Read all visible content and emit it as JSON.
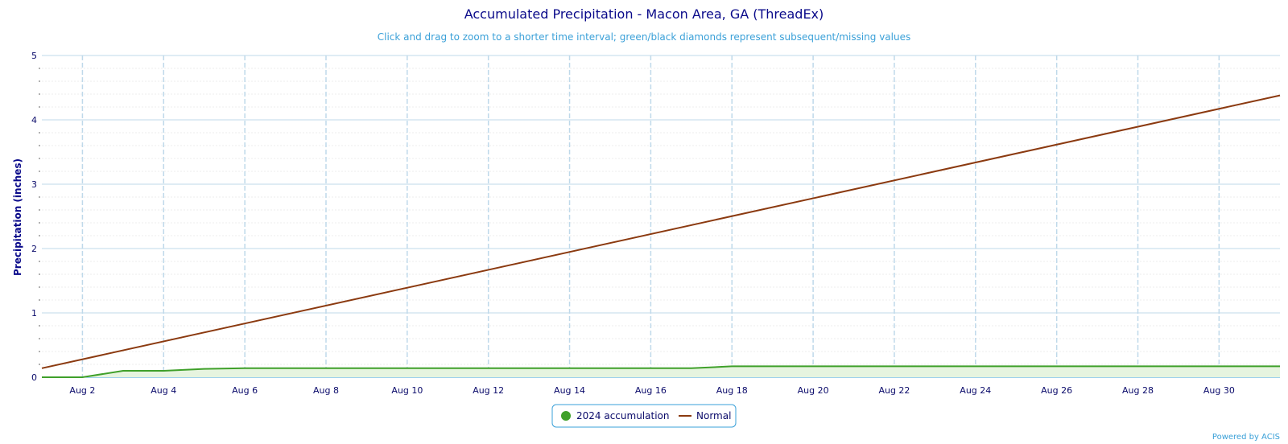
{
  "chart_data": {
    "type": "line",
    "title": "Accumulated Precipitation - Macon Area, GA (ThreadEx)",
    "subtitle": "Click and drag to zoom to a shorter time interval; green/black diamonds represent subsequent/missing values",
    "ylabel": "Precipitation (inches)",
    "xlabel": "",
    "ylim": [
      0,
      5
    ],
    "yticks": [
      0,
      1,
      2,
      3,
      4,
      5
    ],
    "xlim": [
      1,
      31.5
    ],
    "xticks": [
      {
        "day": 2,
        "label": "Aug 2"
      },
      {
        "day": 4,
        "label": "Aug 4"
      },
      {
        "day": 6,
        "label": "Aug 6"
      },
      {
        "day": 8,
        "label": "Aug 8"
      },
      {
        "day": 10,
        "label": "Aug 10"
      },
      {
        "day": 12,
        "label": "Aug 12"
      },
      {
        "day": 14,
        "label": "Aug 14"
      },
      {
        "day": 16,
        "label": "Aug 16"
      },
      {
        "day": 18,
        "label": "Aug 18"
      },
      {
        "day": 20,
        "label": "Aug 20"
      },
      {
        "day": 22,
        "label": "Aug 22"
      },
      {
        "day": 24,
        "label": "Aug 24"
      },
      {
        "day": 26,
        "label": "Aug 26"
      },
      {
        "day": 28,
        "label": "Aug 28"
      },
      {
        "day": 30,
        "label": "Aug 30"
      }
    ],
    "grid": true,
    "legend_position": "bottom-center",
    "series": [
      {
        "name": "2024 accumulation",
        "color": "#3fa02a",
        "fill": "#e6f4df",
        "x": [
          1,
          2,
          3,
          4,
          5,
          6,
          7,
          8,
          9,
          10,
          11,
          12,
          13,
          14,
          15,
          16,
          17,
          18,
          19,
          20,
          21,
          22,
          23,
          24,
          25,
          26,
          27,
          28,
          29,
          30,
          31
        ],
        "y": [
          0,
          0,
          0.1,
          0.1,
          0.13,
          0.14,
          0.14,
          0.14,
          0.14,
          0.14,
          0.14,
          0.14,
          0.14,
          0.14,
          0.14,
          0.14,
          0.14,
          0.17,
          0.17,
          0.17,
          0.17,
          0.17,
          0.17,
          0.17,
          0.17,
          0.17,
          0.17,
          0.17,
          0.17,
          0.17,
          0.17
        ]
      },
      {
        "name": "Normal",
        "color": "#8b3a10",
        "x": [
          1,
          31.5
        ],
        "y": [
          0.14,
          4.38
        ]
      }
    ],
    "credit": "Powered by ACIS"
  }
}
